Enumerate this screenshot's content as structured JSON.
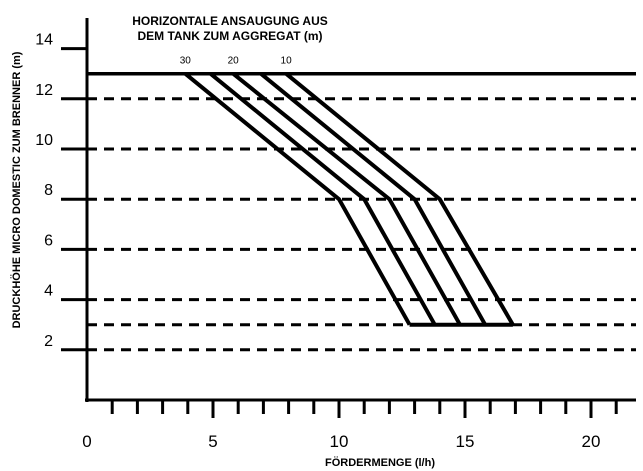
{
  "chart_data": {
    "type": "line",
    "title": [
      "HORIZONTALE ANSAUGUNG AUS",
      "DEM TANK ZUM AGGREGAT (m)"
    ],
    "xlabel": "FÖRDERMENGE (l/h)",
    "ylabel": "DRUCKHÖHE MICRO DOMESTIC ZUM BRENNER (m)",
    "xlim": [
      0,
      22
    ],
    "ylim": [
      0,
      15.2
    ],
    "x_ticks": [
      0,
      5,
      10,
      15,
      20
    ],
    "x_tick_labels": [
      "0",
      "5",
      "10",
      "15",
      "20"
    ],
    "y_ticks": [
      2,
      4,
      6,
      8,
      10,
      12,
      14
    ],
    "y_tick_labels": [
      "2",
      "4",
      "6",
      "8",
      "10",
      "12",
      "14"
    ],
    "grid": "dashed horizontal lines at 2, 3, 4, 6, 8, 10, 12",
    "reference_line": 13,
    "series": [
      {
        "name": "30",
        "points": [
          [
            3.9,
            13
          ],
          [
            10.0,
            8
          ],
          [
            12.8,
            3
          ]
        ]
      },
      {
        "points": [
          [
            4.9,
            13
          ],
          [
            11.0,
            8
          ],
          [
            13.8,
            3
          ]
        ]
      },
      {
        "name": "20",
        "points": [
          [
            5.8,
            13
          ],
          [
            12.0,
            8
          ],
          [
            14.8,
            3
          ]
        ]
      },
      {
        "points": [
          [
            6.9,
            13
          ],
          [
            13.0,
            8
          ],
          [
            15.8,
            3
          ]
        ]
      },
      {
        "name": "10",
        "points": [
          [
            7.9,
            13
          ],
          [
            14.0,
            8
          ],
          [
            16.9,
            3
          ]
        ]
      }
    ],
    "base_line": {
      "x": [
        12.8,
        16.9
      ],
      "y": 3
    }
  }
}
